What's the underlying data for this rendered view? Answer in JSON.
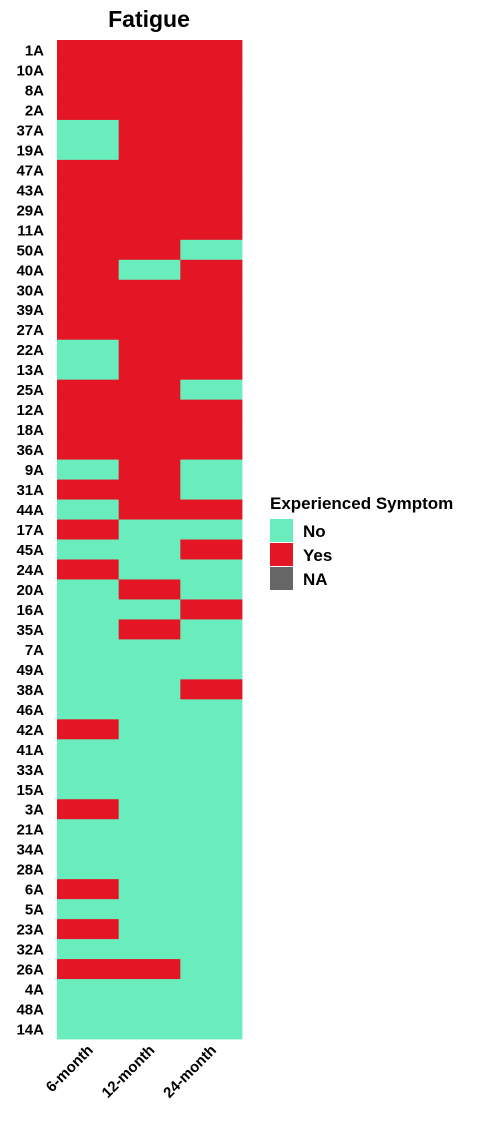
{
  "chart_data": {
    "type": "heatmap",
    "title": "Fatigue",
    "columns": [
      "6-month",
      "12-month",
      "24-month"
    ],
    "rows": [
      "1A",
      "10A",
      "8A",
      "2A",
      "37A",
      "19A",
      "47A",
      "43A",
      "29A",
      "11A",
      "50A",
      "40A",
      "30A",
      "39A",
      "27A",
      "22A",
      "13A",
      "25A",
      "12A",
      "18A",
      "36A",
      "9A",
      "31A",
      "44A",
      "17A",
      "45A",
      "24A",
      "20A",
      "16A",
      "35A",
      "7A",
      "49A",
      "38A",
      "46A",
      "42A",
      "41A",
      "33A",
      "15A",
      "3A",
      "21A",
      "34A",
      "28A",
      "6A",
      "5A",
      "23A",
      "32A",
      "26A",
      "4A",
      "48A",
      "14A"
    ],
    "values": [
      [
        "Yes",
        "Yes",
        "Yes"
      ],
      [
        "Yes",
        "Yes",
        "Yes"
      ],
      [
        "Yes",
        "Yes",
        "Yes"
      ],
      [
        "Yes",
        "Yes",
        "Yes"
      ],
      [
        "No",
        "Yes",
        "Yes"
      ],
      [
        "No",
        "Yes",
        "Yes"
      ],
      [
        "Yes",
        "Yes",
        "Yes"
      ],
      [
        "Yes",
        "Yes",
        "Yes"
      ],
      [
        "Yes",
        "Yes",
        "Yes"
      ],
      [
        "Yes",
        "Yes",
        "Yes"
      ],
      [
        "Yes",
        "Yes",
        "No"
      ],
      [
        "Yes",
        "No",
        "Yes"
      ],
      [
        "Yes",
        "Yes",
        "Yes"
      ],
      [
        "Yes",
        "Yes",
        "Yes"
      ],
      [
        "Yes",
        "Yes",
        "Yes"
      ],
      [
        "No",
        "Yes",
        "Yes"
      ],
      [
        "No",
        "Yes",
        "Yes"
      ],
      [
        "Yes",
        "Yes",
        "No"
      ],
      [
        "Yes",
        "Yes",
        "Yes"
      ],
      [
        "Yes",
        "Yes",
        "Yes"
      ],
      [
        "Yes",
        "Yes",
        "Yes"
      ],
      [
        "No",
        "Yes",
        "No"
      ],
      [
        "Yes",
        "Yes",
        "No"
      ],
      [
        "No",
        "Yes",
        "Yes"
      ],
      [
        "Yes",
        "No",
        "No"
      ],
      [
        "No",
        "No",
        "Yes"
      ],
      [
        "Yes",
        "No",
        "No"
      ],
      [
        "No",
        "Yes",
        "No"
      ],
      [
        "No",
        "No",
        "Yes"
      ],
      [
        "No",
        "Yes",
        "No"
      ],
      [
        "No",
        "No",
        "No"
      ],
      [
        "No",
        "No",
        "No"
      ],
      [
        "No",
        "No",
        "Yes"
      ],
      [
        "No",
        "No",
        "No"
      ],
      [
        "Yes",
        "No",
        "No"
      ],
      [
        "No",
        "No",
        "No"
      ],
      [
        "No",
        "No",
        "No"
      ],
      [
        "No",
        "No",
        "No"
      ],
      [
        "Yes",
        "No",
        "No"
      ],
      [
        "No",
        "No",
        "No"
      ],
      [
        "No",
        "No",
        "No"
      ],
      [
        "No",
        "No",
        "No"
      ],
      [
        "Yes",
        "No",
        "No"
      ],
      [
        "No",
        "No",
        "No"
      ],
      [
        "Yes",
        "No",
        "No"
      ],
      [
        "No",
        "No",
        "No"
      ],
      [
        "Yes",
        "Yes",
        "No"
      ],
      [
        "No",
        "No",
        "No"
      ],
      [
        "No",
        "No",
        "No"
      ],
      [
        "No",
        "No",
        "No"
      ]
    ],
    "legend": {
      "title": "Experienced Symptom",
      "placement": "right",
      "items": [
        {
          "label": "No",
          "color": "#6aedbd"
        },
        {
          "label": "Yes",
          "color": "#e41525"
        },
        {
          "label": "NA",
          "color": "#666666"
        }
      ]
    },
    "grid": false
  }
}
